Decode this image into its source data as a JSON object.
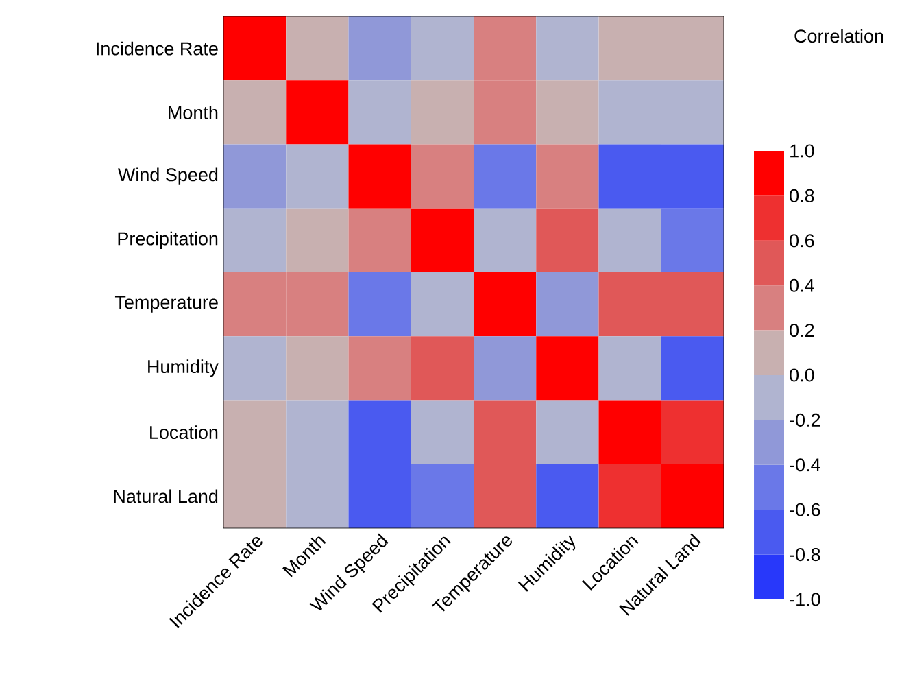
{
  "chart_data": {
    "type": "heatmap",
    "clabel": "Correlation",
    "categories": [
      "Incidence Rate",
      "Month",
      "Wind Speed",
      "Precipitation",
      "Temperature",
      "Humidity",
      "Location",
      "Natural Land"
    ],
    "y_categories": [
      "Incidence Rate",
      "Month",
      "Wind Speed",
      "Precipitation",
      "Temperature",
      "Humidity",
      "Location",
      "Natural Land"
    ],
    "cells": [
      [
        1.0,
        0.1,
        -0.3,
        -0.1,
        0.3,
        -0.1,
        0.1,
        0.1
      ],
      [
        0.1,
        1.0,
        -0.1,
        0.1,
        0.3,
        0.1,
        -0.1,
        -0.1
      ],
      [
        -0.3,
        -0.1,
        1.0,
        0.3,
        -0.5,
        0.3,
        -0.7,
        -0.7
      ],
      [
        -0.1,
        0.1,
        0.3,
        1.0,
        -0.1,
        0.5,
        -0.1,
        -0.5
      ],
      [
        0.3,
        0.3,
        -0.5,
        -0.1,
        1.0,
        -0.3,
        0.5,
        0.5
      ],
      [
        -0.1,
        0.1,
        0.3,
        0.5,
        -0.3,
        1.0,
        -0.1,
        -0.7
      ],
      [
        0.1,
        -0.1,
        -0.7,
        -0.1,
        0.5,
        -0.1,
        1.0,
        0.7
      ],
      [
        0.1,
        -0.1,
        -0.7,
        -0.5,
        0.5,
        -0.7,
        0.7,
        1.0
      ]
    ],
    "clim": [
      -1,
      1
    ],
    "cticks": [
      {
        "value": -1,
        "label": "-1.0"
      },
      {
        "value": -0.8,
        "label": "-0.8"
      },
      {
        "value": -0.6,
        "label": "-0.6"
      },
      {
        "value": -0.4,
        "label": "-0.4"
      },
      {
        "value": -0.2,
        "label": "-0.2"
      },
      {
        "value": 0,
        "label": "0.0"
      },
      {
        "value": 0.2,
        "label": "0.2"
      },
      {
        "value": 0.4,
        "label": "0.4"
      },
      {
        "value": 0.6,
        "label": "0.6"
      },
      {
        "value": 0.8,
        "label": "0.8"
      },
      {
        "value": 1,
        "label": "1.0"
      }
    ]
  }
}
